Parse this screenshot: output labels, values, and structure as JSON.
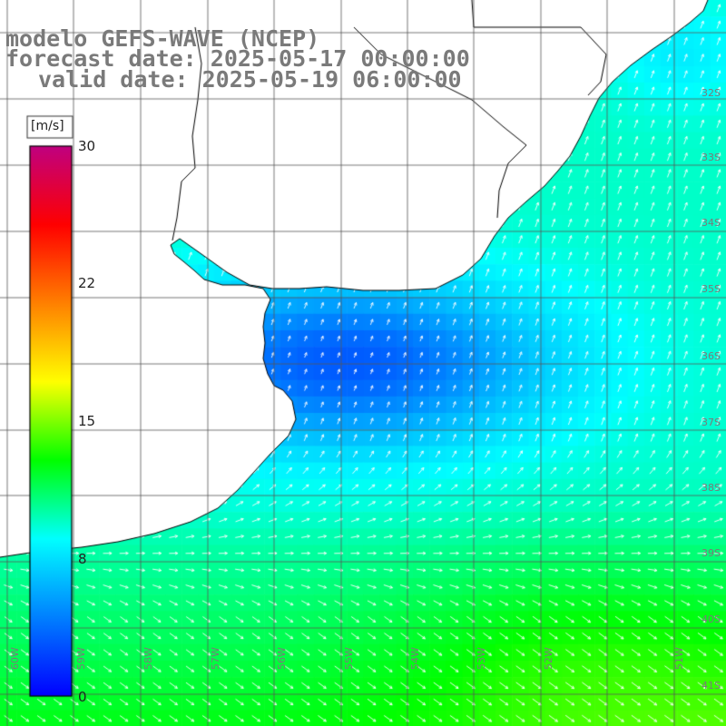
{
  "titles": {
    "model": "modelo GEFS-WAVE (NCEP)",
    "forecast": "forecast date: 2025-05-17 00:00:00",
    "valid": "valid date: 2025-05-19 06:00:00"
  },
  "colorbar": {
    "unit": "[m/s]",
    "ticks": [
      "30",
      "22",
      "15",
      "8",
      "0"
    ],
    "range": [
      0,
      30
    ],
    "colors": [
      "#0000ff",
      "#0080ff",
      "#00ffff",
      "#00ff00",
      "#ffff00",
      "#ff8000",
      "#ff0000",
      "#c00080"
    ]
  },
  "lat_labels": [
    "32S",
    "33S",
    "34S",
    "35S",
    "36S",
    "37S",
    "38S",
    "39S",
    "40S",
    "41S"
  ],
  "lon_labels": [
    "60W",
    "59W",
    "58W",
    "57W",
    "56W",
    "55W",
    "54W",
    "53W",
    "52W",
    "51W"
  ],
  "colors": {
    "grid": "#555555",
    "coast": "#000000",
    "arrow": "#ffffff",
    "land": "#ffffff"
  }
}
